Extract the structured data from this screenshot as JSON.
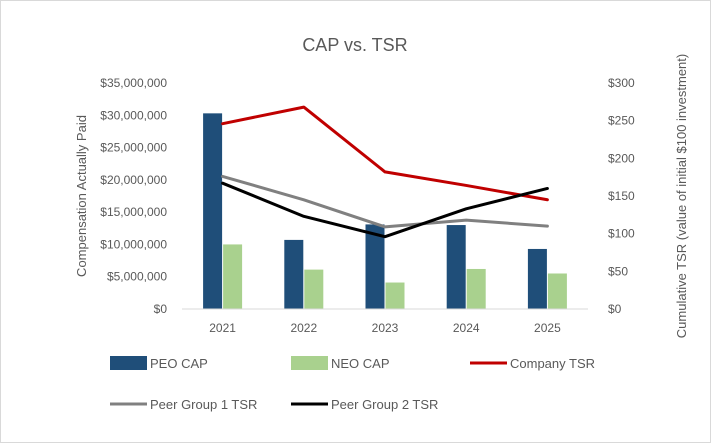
{
  "chart_data": {
    "type": "bar+line",
    "title": "CAP vs. TSR",
    "categories": [
      "2021",
      "2022",
      "2023",
      "2024",
      "2025"
    ],
    "y_left": {
      "label": "Compensation Actually Paid",
      "range": [
        0,
        35000000
      ],
      "ticks": [
        "$0",
        "$5,000,000",
        "$10,000,000",
        "$15,000,000",
        "$20,000,000",
        "$25,000,000",
        "$30,000,000",
        "$35,000,000"
      ]
    },
    "y_right": {
      "label": "Cumulative TSR (value of initial $100 investment)",
      "range": [
        0,
        300
      ],
      "ticks": [
        "$0",
        "$50",
        "$100",
        "$150",
        "$200",
        "$250",
        "$300"
      ]
    },
    "series": [
      {
        "name": "PEO CAP",
        "kind": "bar",
        "axis": "left",
        "color": "#1f4e79",
        "values": [
          30300000,
          10700000,
          13100000,
          13000000,
          9300000
        ]
      },
      {
        "name": "NEO CAP",
        "kind": "bar",
        "axis": "left",
        "color": "#a9d18e",
        "values": [
          10000000,
          6100000,
          4100000,
          6200000,
          5500000
        ]
      },
      {
        "name": "Company TSR",
        "kind": "line",
        "axis": "right",
        "color": "#c00000",
        "values": [
          246,
          268,
          182,
          164,
          145
        ]
      },
      {
        "name": "Peer Group 1 TSR",
        "kind": "line",
        "axis": "right",
        "color": "#808080",
        "values": [
          176,
          145,
          109,
          118,
          110
        ]
      },
      {
        "name": "Peer Group 2 TSR",
        "kind": "line",
        "axis": "right",
        "color": "#000000",
        "values": [
          167,
          123,
          96,
          133,
          160
        ]
      }
    ],
    "grid": false,
    "legend": "bottom"
  }
}
